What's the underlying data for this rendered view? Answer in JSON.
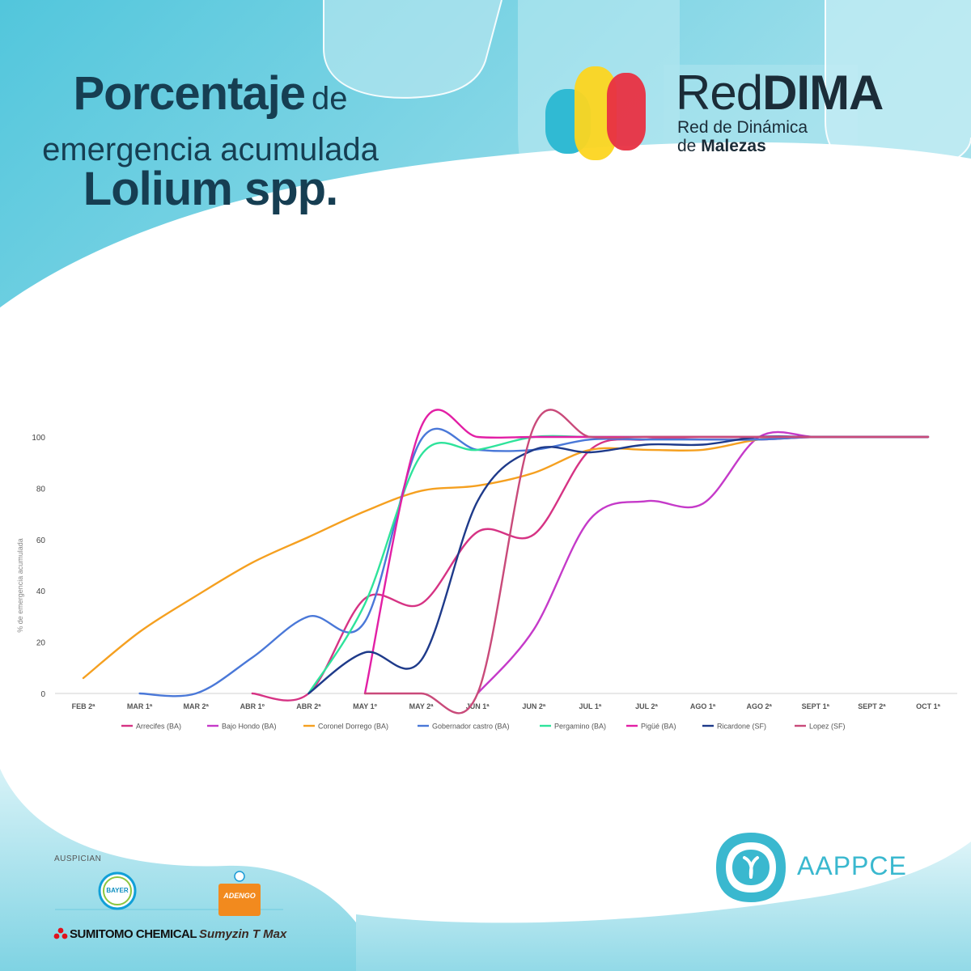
{
  "header": {
    "title_bold": "Porcentaje",
    "title_connector": "de",
    "title_line2": "emergencia acumulada",
    "title_line3": "Lolium spp."
  },
  "brand": {
    "name_light": "Red",
    "name_bold": "DIMA",
    "subtitle_line1": "Red de Dinámica",
    "subtitle_line2_prefix": "de",
    "subtitle_line2_bold": "Malezas",
    "logo_colors": [
      "#30bad3",
      "#fcd520",
      "#e83042"
    ]
  },
  "footer": {
    "sponsors_label": "AUSPICIAN",
    "sponsors": [
      "BAYER",
      "ADENGO",
      "SUMITOMO CHEMICAL",
      "Sumyzin T Max"
    ],
    "org_name": "AAPPCE",
    "org_color": "#3ab8cf"
  },
  "chart_data": {
    "type": "line",
    "title": "",
    "xlabel": "",
    "ylabel": "% de emergencia acumulada",
    "ylim": [
      0,
      100
    ],
    "yticks": [
      "0",
      "20",
      "40",
      "60",
      "80",
      "100"
    ],
    "grid": false,
    "legend_position": "bottom",
    "categories": [
      "FEB 2ª",
      "MAR 1ª",
      "MAR 2ª",
      "ABR 1º",
      "ABR  2ª",
      "MAY 1º",
      "MAY 2ª",
      "JUN 1ª",
      "JUN 2ª",
      "JUL 1ª",
      "JUL 2ª",
      "AGO 1ª",
      "AGO 2ª",
      "SEPT 1ª",
      "SEPT 2ª",
      "OCT 1ª"
    ],
    "series": [
      {
        "name": "Arrecifes (BA)",
        "color": "#d63384",
        "values": [
          null,
          null,
          null,
          0,
          0,
          37,
          35,
          63,
          62,
          95,
          99,
          99,
          99,
          100,
          100,
          100
        ]
      },
      {
        "name": "Bajo Hondo (BA)",
        "color": "#c53ac9",
        "values": [
          null,
          null,
          null,
          null,
          null,
          null,
          null,
          0,
          25,
          68,
          75,
          74,
          100,
          100,
          100,
          100
        ]
      },
      {
        "name": "Coronel Dorrego (BA)",
        "color": "#f5a020",
        "values": [
          6,
          24,
          38,
          51,
          61,
          71,
          79,
          81,
          86,
          95,
          95,
          95,
          99,
          100,
          100,
          100
        ]
      },
      {
        "name": "Gobernador castro (BA)",
        "color": "#4a78d8",
        "values": [
          null,
          0,
          0,
          14,
          30,
          28,
          99,
          95,
          95,
          99,
          99,
          99,
          99,
          100,
          100,
          100
        ]
      },
      {
        "name": "Pergamino (BA)",
        "color": "#2ee39b",
        "values": [
          null,
          null,
          null,
          null,
          0,
          35,
          93,
          95,
          100,
          100,
          100,
          100,
          100,
          100,
          100,
          100
        ]
      },
      {
        "name": "Pigüé (BA)",
        "color": "#e21fa5",
        "values": [
          null,
          null,
          null,
          null,
          null,
          0,
          104,
          100,
          100,
          100,
          100,
          100,
          100,
          100,
          100,
          100
        ]
      },
      {
        "name": "Ricardone (SF)",
        "color": "#1e3a8a",
        "values": [
          null,
          null,
          null,
          null,
          0,
          16,
          13,
          75,
          95,
          94,
          97,
          97,
          100,
          100,
          100,
          100
        ]
      },
      {
        "name": "Lopez (SF)",
        "color": "#c94a7a",
        "values": [
          null,
          null,
          null,
          null,
          null,
          0,
          0,
          0,
          104,
          100,
          100,
          100,
          100,
          100,
          100,
          100
        ]
      }
    ]
  }
}
